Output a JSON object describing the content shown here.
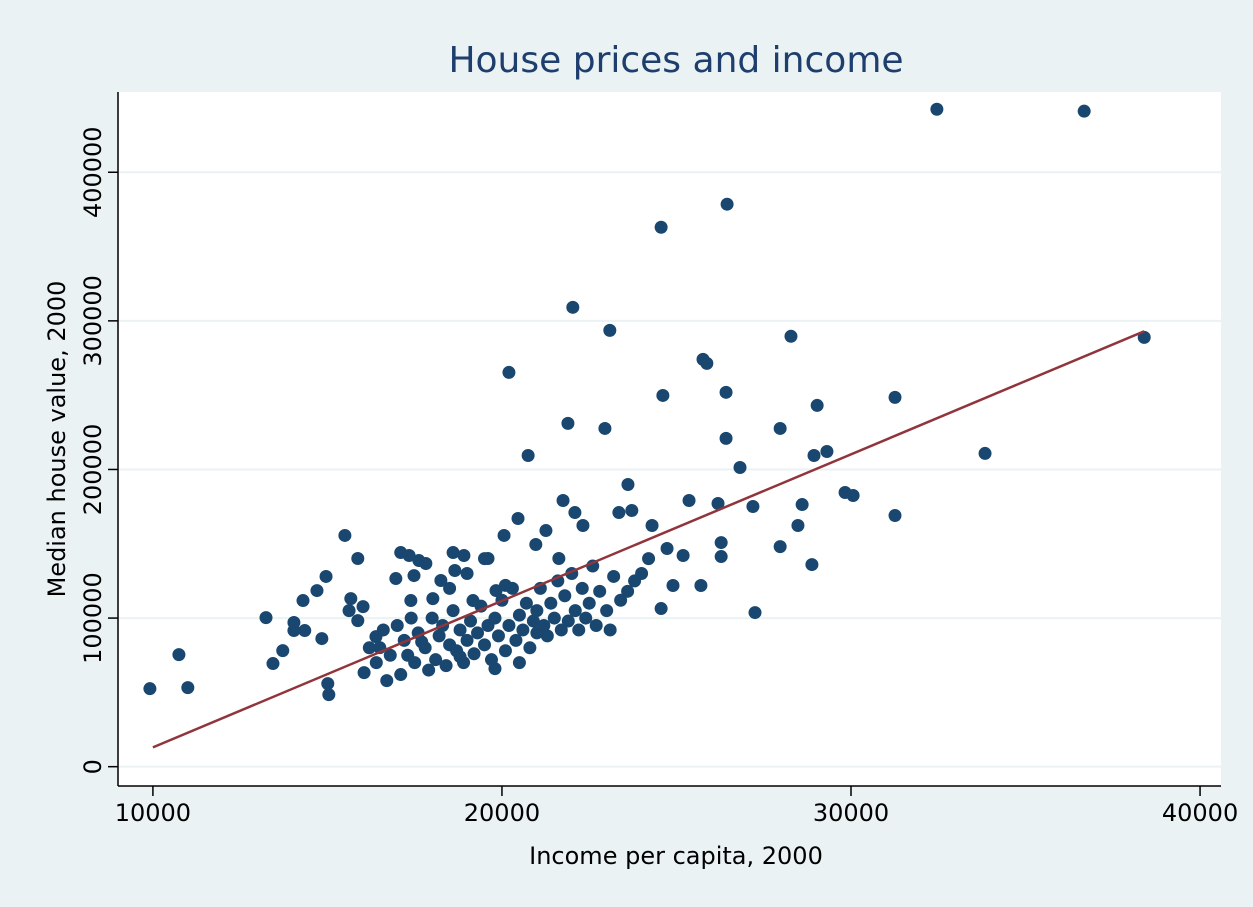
{
  "chart_data": {
    "type": "scatter",
    "title": "House prices and income",
    "x_label": "Income per capita, 2000",
    "y_label": "Median house value, 2000",
    "xlim": [
      9000,
      40600
    ],
    "ylim": [
      -13000,
      454000
    ],
    "xticks": [
      10000,
      20000,
      30000,
      40000
    ],
    "yticks": [
      0,
      100000,
      200000,
      300000,
      400000
    ],
    "grid": true,
    "points": {
      "color": "#1a476f",
      "x": [
        9914,
        10745,
        11000,
        13240,
        13440,
        13720,
        14040,
        14040,
        14300,
        14350,
        14700,
        14840,
        14960,
        15010,
        15040,
        15500,
        15620,
        15670,
        15870,
        15870,
        16020,
        16050,
        16390,
        16500,
        16700,
        16960,
        17100,
        17340,
        17390,
        17480,
        17620,
        17820,
        18020,
        18250,
        18600,
        18650,
        18910,
        19170,
        19600,
        19830,
        20060,
        20200,
        20460,
        20750,
        20970,
        21260,
        21630,
        21750,
        21890,
        22030,
        22090,
        22320,
        22950,
        23090,
        23350,
        23610,
        23720,
        24300,
        24560,
        24610,
        24560,
        24730,
        24900,
        25190,
        25360,
        25700,
        25760,
        25870,
        26190,
        26280,
        26280,
        26420,
        26420,
        26450,
        26820,
        27190,
        27250,
        27970,
        27970,
        28280,
        28480,
        28600,
        28880,
        28940,
        29030,
        29310,
        29830,
        30060,
        31260,
        31260,
        32460,
        33840,
        36680,
        38400,
        17000,
        17200,
        17300,
        17500,
        17600,
        17800,
        17900,
        18000,
        18100,
        18200,
        18300,
        18400,
        18500,
        18600,
        18700,
        18800,
        18900,
        19000,
        19100,
        19200,
        19300,
        19400,
        19500,
        19600,
        19700,
        19800,
        19900,
        20000,
        20100,
        20200,
        20300,
        20400,
        20500,
        20600,
        20700,
        20800,
        20900,
        21000,
        21100,
        21200,
        21300,
        21400,
        21500,
        21600,
        21700,
        21800,
        21900,
        22000,
        22100,
        22200,
        22300,
        22400,
        22500,
        22600,
        22700,
        22800,
        23000,
        23100,
        23200,
        23400,
        23600,
        23800,
        24000,
        24200,
        16200,
        16400,
        16600,
        16800,
        17100,
        17400,
        17700,
        18500,
        19000,
        19500,
        20100,
        21000,
        20500,
        19800,
        18800
      ],
      "y": [
        52500,
        75400,
        53200,
        100300,
        69400,
        78100,
        97000,
        91600,
        111800,
        91600,
        118500,
        86200,
        128000,
        55900,
        48500,
        155600,
        105000,
        113100,
        140100,
        98300,
        107700,
        63300,
        87500,
        80100,
        57900,
        126600,
        144100,
        142100,
        111800,
        128600,
        138700,
        136700,
        113100,
        125300,
        144100,
        132000,
        142100,
        111800,
        140100,
        118500,
        155600,
        265300,
        167000,
        209400,
        149500,
        158900,
        140100,
        179100,
        231000,
        309100,
        171000,
        162300,
        227600,
        293600,
        171000,
        189900,
        172400,
        162300,
        363000,
        249800,
        106400,
        146800,
        121900,
        142100,
        179100,
        121900,
        274100,
        271400,
        177100,
        150800,
        141400,
        251900,
        220900,
        378500,
        201300,
        175100,
        103700,
        227600,
        148100,
        289600,
        162300,
        176400,
        136000,
        209400,
        243100,
        212100,
        184500,
        182500,
        248500,
        169000,
        442400,
        210800,
        441100,
        288900,
        95000,
        85000,
        75000,
        70000,
        90000,
        80000,
        65000,
        100000,
        72000,
        88000,
        95000,
        68000,
        82000,
        105000,
        78000,
        92000,
        70000,
        85000,
        98000,
        76000,
        90000,
        108000,
        82000,
        95000,
        72000,
        100000,
        88000,
        112000,
        78000,
        95000,
        120000,
        85000,
        102000,
        92000,
        110000,
        80000,
        98000,
        105000,
        120000,
        95000,
        88000,
        110000,
        100000,
        125000,
        92000,
        115000,
        98000,
        130000,
        105000,
        92000,
        120000,
        100000,
        110000,
        135000,
        95000,
        118000,
        105000,
        92000,
        128000,
        112000,
        118000,
        125000,
        130000,
        140000,
        80000,
        70000,
        92000,
        75000,
        62000,
        100000,
        84000,
        120000,
        130000,
        140000,
        122000,
        90000,
        70000,
        66000,
        74000
      ]
    },
    "fit_line": {
      "color": "#90353b",
      "x": [
        10000,
        38400
      ],
      "y": [
        13000,
        293000
      ]
    }
  }
}
